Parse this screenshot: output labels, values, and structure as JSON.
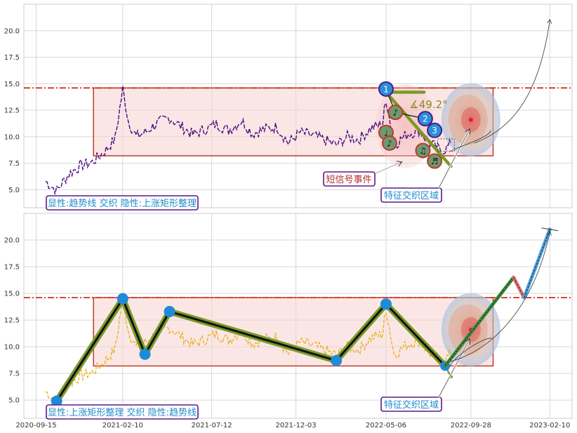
{
  "chart_data": [
    {
      "type": "line",
      "panel": "top",
      "title": "",
      "xlabel": "",
      "ylabel": "",
      "ylim": [
        3.3,
        22.5
      ],
      "yticks": [
        "5.0",
        "7.5",
        "10.0",
        "12.5",
        "15.0",
        "17.5",
        "20.0"
      ],
      "grid": true,
      "resistance_line": 14.6,
      "rectangle": {
        "x_start": "2020-12-22",
        "x_end": "2022-11-05",
        "y_low": 8.2,
        "y_high": 14.6
      },
      "price_series": {
        "x": [
          "2020-10-01",
          "2020-10-20",
          "2020-11-10",
          "2020-12-01",
          "2020-12-20",
          "2021-01-10",
          "2021-01-28",
          "2021-02-10",
          "2021-02-20",
          "2021-03-05",
          "2021-03-20",
          "2021-04-10",
          "2021-05-01",
          "2021-05-20",
          "2021-06-10",
          "2021-07-01",
          "2021-07-20",
          "2021-08-10",
          "2021-09-01",
          "2021-09-20",
          "2021-10-10",
          "2021-11-01",
          "2021-11-20",
          "2021-12-10",
          "2022-01-01",
          "2022-01-20",
          "2022-02-10",
          "2022-03-01",
          "2022-03-20",
          "2022-04-10",
          "2022-04-30",
          "2022-05-06",
          "2022-05-20",
          "2022-06-10",
          "2022-07-01",
          "2022-07-20",
          "2022-08-10",
          "2022-08-25"
        ],
        "y": [
          5.8,
          4.9,
          6.5,
          7.3,
          7.6,
          8.6,
          9.8,
          14.5,
          11.4,
          10.0,
          10.4,
          11.3,
          11.8,
          11.0,
          10.2,
          10.7,
          11.2,
          10.6,
          11.5,
          10.3,
          10.7,
          10.9,
          9.4,
          10.4,
          10.1,
          9.7,
          9.2,
          10.0,
          9.7,
          10.8,
          11.2,
          13.6,
          9.2,
          10.2,
          10.6,
          9.4,
          8.6,
          9.3
        ]
      },
      "markers": [
        {
          "label": "1",
          "x": "2022-05-06",
          "y": 14.5
        },
        {
          "label": "2",
          "x": "2022-07-12",
          "y": 11.7
        },
        {
          "label": "3",
          "x": "2022-07-28",
          "y": 10.6
        },
        {
          "label": "♪",
          "x": "2022-05-22",
          "y": 12.3
        },
        {
          "label": "♩",
          "x": "2022-05-06",
          "y": 10.4
        },
        {
          "label": "♪",
          "x": "2022-05-12",
          "y": 9.4
        },
        {
          "label": "♫",
          "x": "2022-07-08",
          "y": 8.7
        },
        {
          "label": "♬",
          "x": "2022-07-28",
          "y": 7.7
        }
      ],
      "angle_annotation": "∡49.2°",
      "target_point": {
        "x": "2022-09-28",
        "y": 11.6
      },
      "annotations": [
        "短信号事件",
        "特征交织区域"
      ],
      "legend_box": "显性:趋势线 交织 隐性:上涨矩形整理"
    },
    {
      "type": "line",
      "panel": "bottom",
      "title": "",
      "xlabel": "",
      "ylabel": "",
      "ylim": [
        3.3,
        22.5
      ],
      "yticks": [
        "5.0",
        "7.5",
        "10.0",
        "12.5",
        "15.0",
        "17.5",
        "20.0"
      ],
      "xticks": [
        "2020-09-15",
        "2021-02-10",
        "2021-07-12",
        "2021-12-03",
        "2022-05-06",
        "2022-09-28",
        "2023-02-10"
      ],
      "grid": true,
      "resistance_line": 14.6,
      "rectangle": {
        "x_start": "2020-12-22",
        "x_end": "2022-11-05",
        "y_low": 8.2,
        "y_high": 14.6
      },
      "zigzag": {
        "x": [
          "2020-10-20",
          "2021-02-10",
          "2021-03-20",
          "2021-05-01",
          "2022-02-10",
          "2022-05-06",
          "2022-08-15"
        ],
        "y": [
          4.9,
          14.5,
          9.3,
          13.3,
          8.7,
          14.0,
          8.2
        ]
      },
      "projection": {
        "x": [
          "2022-08-15",
          "2022-12-10",
          "2022-12-28",
          "2023-02-10"
        ],
        "y": [
          8.2,
          16.5,
          14.6,
          21.0
        ]
      },
      "target_point": {
        "x": "2022-09-28",
        "y": 11.6
      },
      "annotations": [
        "特征交织区域"
      ],
      "legend_box": "显性:上涨矩形整理 交织 隐性:趋势线"
    }
  ]
}
